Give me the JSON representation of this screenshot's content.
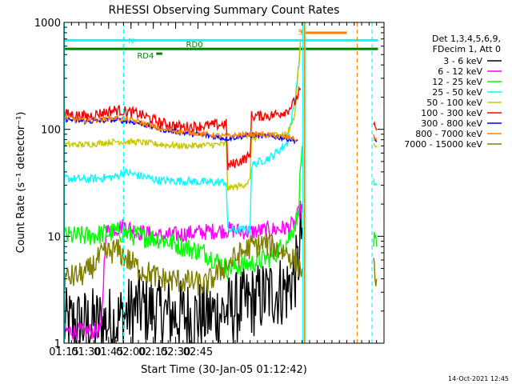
{
  "chart_data": {
    "type": "line",
    "title": "RHESSI Observing Summary Count Rates",
    "xlabel": "Start Time (30-Jan-05 01:12:42)",
    "ylabel": "Count Rate (s⁻¹ detector⁻¹)",
    "y_scale": "log",
    "ylim": [
      1,
      1000
    ],
    "xlim_minutes": [
      75,
      290
    ],
    "x_ticks": [
      "01:15",
      "01:30",
      "01:45",
      "02:00",
      "02:15",
      "02:30",
      "02:45"
    ],
    "y_ticks": [
      "1",
      "10",
      "100",
      "1000"
    ],
    "grid": false,
    "legend_position": "right",
    "legend_header": [
      "Det 1,3,4,5,6,9,",
      "FDecim 1, Att 0"
    ],
    "footer_date": "14-Oct-2021 12:45",
    "flags": [
      {
        "label": "N",
        "color": "#00ffff",
        "value": 680,
        "start": 75,
        "end": 286
      },
      {
        "label": "RD0",
        "color": "#008000",
        "value": 565,
        "start": 75,
        "end": 286
      },
      {
        "label": "RD4",
        "color": "#008000",
        "value": 510,
        "start": 137,
        "end": 141
      },
      {
        "label": "S",
        "color": "#ff8000",
        "value": 820,
        "start": 234,
        "end": 235
      },
      {
        "label": "",
        "color": "#ff8000",
        "value": 800,
        "start": 237,
        "end": 265
      }
    ],
    "vertical_markers": [
      {
        "x": 75.3,
        "style": "solid",
        "color": "#00ffff"
      },
      {
        "x": 115,
        "style": "dashed",
        "color": "#00ffff"
      },
      {
        "x": 235.5,
        "style": "solid",
        "color": "#00ffff"
      },
      {
        "x": 236.5,
        "style": "solid",
        "color": "#ff8000"
      },
      {
        "x": 237.2,
        "style": "solid",
        "color": "#00ffff"
      },
      {
        "x": 272,
        "style": "dashed",
        "color": "#ff8000"
      },
      {
        "x": 282,
        "style": "dashed",
        "color": "#00ffff"
      }
    ],
    "series": [
      {
        "name": "3 - 6 keV",
        "color": "#000000",
        "noise": 0.35,
        "segments": [
          [
            [
              75,
              1.5
            ],
            [
              90,
              1.5
            ],
            [
              110,
              1.6
            ],
            [
              125,
              2.2
            ],
            [
              140,
              1.9
            ],
            [
              155,
              1.8
            ],
            [
              170,
              1.8
            ],
            [
              185,
              2.0
            ],
            [
              200,
              2.4
            ],
            [
              215,
              3.0
            ],
            [
              225,
              3.2
            ],
            [
              232,
              5
            ],
            [
              234,
              10
            ],
            [
              235,
              12
            ]
          ]
        ]
      },
      {
        "name": "6 - 12 keV",
        "color": "#ff00ff",
        "noise": 0.08,
        "segments": [
          [
            [
              75,
              1.3
            ],
            [
              100,
              1.3
            ],
            [
              103,
              11
            ],
            [
              115,
              12.5
            ],
            [
              125,
              11
            ],
            [
              140,
              10
            ],
            [
              155,
              10.5
            ],
            [
              170,
              11
            ],
            [
              185,
              11.5
            ],
            [
              200,
              11
            ],
            [
              215,
              11.5
            ],
            [
              225,
              12
            ],
            [
              230,
              13
            ],
            [
              235,
              20
            ]
          ]
        ]
      },
      {
        "name": "12 - 25 keV",
        "color": "#00ff00",
        "noise": 0.1,
        "segments": [
          [
            [
              75,
              10
            ],
            [
              90,
              10
            ],
            [
              110,
              11
            ],
            [
              125,
              10
            ],
            [
              140,
              9.5
            ],
            [
              155,
              8
            ],
            [
              170,
              7
            ],
            [
              185,
              5.0
            ],
            [
              200,
              5.5
            ],
            [
              215,
              6.5
            ],
            [
              225,
              9
            ],
            [
              232,
              15
            ],
            [
              235,
              70
            ]
          ],
          [
            [
              283,
              9
            ],
            [
              285,
              8
            ]
          ]
        ]
      },
      {
        "name": "25 - 50 keV",
        "color": "#00ffff",
        "noise": 0.04,
        "segments": [
          [
            [
              75,
              35
            ],
            [
              90,
              34
            ],
            [
              110,
              36
            ],
            [
              115,
              40
            ],
            [
              125,
              37
            ],
            [
              140,
              33
            ],
            [
              155,
              33
            ],
            [
              170,
              32
            ],
            [
              184,
              32
            ],
            [
              185,
              11.5
            ],
            [
              200,
              11.5
            ],
            [
              201,
              46
            ],
            [
              215,
              56
            ],
            [
              225,
              75
            ],
            [
              230,
              180
            ],
            [
              234,
              600
            ]
          ],
          [
            [
              283,
              32
            ],
            [
              285,
              30
            ]
          ]
        ]
      },
      {
        "name": "50 - 100 keV",
        "color": "#c8c800",
        "noise": 0.03,
        "segments": [
          [
            [
              75,
              72
            ],
            [
              90,
              72
            ],
            [
              110,
              77
            ],
            [
              125,
              76
            ],
            [
              140,
              72
            ],
            [
              155,
              70
            ],
            [
              170,
              71
            ],
            [
              184,
              73
            ],
            [
              185,
              28
            ],
            [
              195,
              30
            ],
            [
              200,
              33
            ],
            [
              201,
              82
            ],
            [
              215,
              88
            ],
            [
              225,
              92
            ],
            [
              230,
              130
            ],
            [
              234,
              700
            ]
          ],
          [
            [
              283,
              75
            ],
            [
              285,
              70
            ]
          ]
        ]
      },
      {
        "name": "100 - 300 keV",
        "color": "#ff0000",
        "noise": 0.05,
        "segments": [
          [
            [
              75,
              140
            ],
            [
              90,
              132
            ],
            [
              110,
              152
            ],
            [
              125,
              140
            ],
            [
              140,
              115
            ],
            [
              155,
              105
            ],
            [
              170,
              108
            ],
            [
              184,
              112
            ],
            [
              185,
              45
            ],
            [
              200,
              56
            ],
            [
              201,
              133
            ],
            [
              215,
              135
            ],
            [
              225,
              150
            ],
            [
              230,
              180
            ],
            [
              234,
              240
            ]
          ],
          [
            [
              283,
              105
            ],
            [
              285,
              98
            ]
          ]
        ]
      },
      {
        "name": "300 - 800 keV",
        "color": "#0000ff",
        "noise": 0.025,
        "segments": [
          [
            [
              75,
              125
            ],
            [
              90,
              118
            ],
            [
              110,
              123
            ],
            [
              125,
              115
            ],
            [
              140,
              100
            ],
            [
              155,
              93
            ],
            [
              170,
              88
            ],
            [
              184,
              82
            ],
            [
              200,
              88
            ],
            [
              215,
              86
            ],
            [
              225,
              82
            ],
            [
              232,
              78
            ]
          ],
          [
            [
              283,
              82
            ],
            [
              285,
              76
            ]
          ]
        ]
      },
      {
        "name": "800 - 7000 keV",
        "color": "#ff8000",
        "noise": 0.025,
        "segments": [
          [
            [
              75,
              130
            ],
            [
              90,
              120
            ],
            [
              110,
              128
            ],
            [
              125,
              118
            ],
            [
              140,
              100
            ],
            [
              155,
              95
            ],
            [
              170,
              90
            ],
            [
              184,
              86
            ],
            [
              200,
              90
            ],
            [
              215,
              88
            ],
            [
              225,
              84
            ],
            [
              232,
              80
            ]
          ],
          [
            [
              283,
              85
            ],
            [
              285,
              80
            ]
          ]
        ]
      },
      {
        "name": "7000 - 15000 keV",
        "color": "#808000",
        "noise": 0.12,
        "segments": [
          [
            [
              75,
              4
            ],
            [
              90,
              4.5
            ],
            [
              100,
              6.5
            ],
            [
              110,
              7.5
            ],
            [
              125,
              5
            ],
            [
              140,
              4
            ],
            [
              155,
              3.8
            ],
            [
              170,
              3.5
            ],
            [
              185,
              5.5
            ],
            [
              200,
              8
            ],
            [
              210,
              8.5
            ],
            [
              225,
              7
            ],
            [
              232,
              5.5
            ],
            [
              235,
              5
            ]
          ],
          [
            [
              283,
              5
            ],
            [
              285,
              4
            ]
          ]
        ]
      }
    ]
  }
}
